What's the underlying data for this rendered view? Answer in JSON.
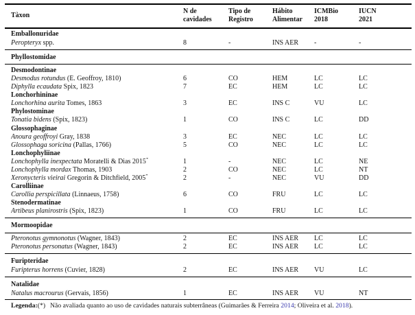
{
  "table": {
    "star_symbol": "*",
    "link_color": "#3a3aad",
    "columns": [
      {
        "id": "taxon",
        "label_line1": "Tàxon",
        "label_line2": ""
      },
      {
        "id": "n_cavidades",
        "label_line1": "N de",
        "label_line2": "cavidades"
      },
      {
        "id": "tipo_registro",
        "label_line1": "Tipo de",
        "label_line2": "Registro"
      },
      {
        "id": "habito_alimentar",
        "label_line1": "Hábito",
        "label_line2": "Alimentar"
      },
      {
        "id": "icmbio_2018",
        "label_line1": "ICMBio",
        "label_line2": "2018"
      },
      {
        "id": "iucn_2021",
        "label_line1": "IUCN",
        "label_line2": "2021"
      }
    ],
    "sections": [
      {
        "family": "Emballonuridae",
        "rule_before": false,
        "rule_after_family": false,
        "rows": [
          {
            "type": "species",
            "italic": "Peropteryx",
            "roman": " spp.",
            "star": false,
            "n": "8",
            "tipo": "-",
            "habito": "INS AER",
            "icmbio": "-",
            "iucn": "-"
          }
        ]
      },
      {
        "family": "Phyllostomidae",
        "rule_before": true,
        "rule_after_family": true,
        "rows": [
          {
            "type": "subfamily",
            "label": "Desmodontinae"
          },
          {
            "type": "species",
            "italic": "Desmodus rotundus",
            "roman": " (É. Geoffroy, 1810)",
            "star": false,
            "n": "6",
            "tipo": "CO",
            "habito": "HEM",
            "icmbio": "LC",
            "iucn": "LC"
          },
          {
            "type": "species",
            "italic": "Diphylla ecaudata",
            "roman": " Spix, 1823",
            "star": false,
            "n": "7",
            "tipo": "EC",
            "habito": "HEM",
            "icmbio": "LC",
            "iucn": "LC"
          },
          {
            "type": "subfamily",
            "label": "Lonchorhininae"
          },
          {
            "type": "species",
            "italic": "Lonchorhina aurita",
            "roman": " Tomes, 1863",
            "star": false,
            "n": "3",
            "tipo": "EC",
            "habito": "INS C",
            "icmbio": "VU",
            "iucn": "LC"
          },
          {
            "type": "subfamily",
            "label": "Phylostominae"
          },
          {
            "type": "species",
            "italic": "Tonatia bidens",
            "roman": " (Spix, 1823)",
            "star": false,
            "n": "1",
            "tipo": "CO",
            "habito": "INS C",
            "icmbio": "LC",
            "iucn": "DD"
          },
          {
            "type": "subfamily",
            "label": "Glossophaginae"
          },
          {
            "type": "species",
            "italic": "Anoura geoffroyi",
            "roman": " Gray, 1838",
            "star": false,
            "n": "3",
            "tipo": "EC",
            "habito": "NEC",
            "icmbio": "LC",
            "iucn": "LC"
          },
          {
            "type": "species",
            "italic": "Glossophaga soricina",
            "roman": " (Pallas, 1766)",
            "star": false,
            "n": "5",
            "tipo": "CO",
            "habito": "NEC",
            "icmbio": "LC",
            "iucn": "LC"
          },
          {
            "type": "subfamily",
            "label": "Lonchophyliinae"
          },
          {
            "type": "species",
            "italic": "Lonchophylla inexpectata",
            "roman": " Moratelli & Dias 2015",
            "star": true,
            "n": "1",
            "tipo": "-",
            "habito": "NEC",
            "icmbio": "LC",
            "iucn": "NE"
          },
          {
            "type": "species",
            "italic": "Lonchophylla mordax",
            "roman": " Thomas, 1903",
            "star": false,
            "n": "2",
            "tipo": "CO",
            "habito": "NEC",
            "icmbio": "LC",
            "iucn": "NT"
          },
          {
            "type": "species",
            "italic": "Xeronycteris vieirai",
            "roman": " Gregorin & Ditchfield, 2005",
            "star": true,
            "n": "2",
            "tipo": "-",
            "habito": "NEC",
            "icmbio": "VU",
            "iucn": "DD"
          },
          {
            "type": "subfamily",
            "label": "Carolliinae"
          },
          {
            "type": "species",
            "italic": "Carollia perspicillata",
            "roman": " (Linnaeus, 1758)",
            "star": false,
            "n": "6",
            "tipo": "CO",
            "habito": "FRU",
            "icmbio": "LC",
            "iucn": "LC"
          },
          {
            "type": "subfamily",
            "label": "Stenodermatinae"
          },
          {
            "type": "species",
            "italic": "Artibeus planirostris",
            "roman": " (Spix, 1823)",
            "star": false,
            "n": "1",
            "tipo": "CO",
            "habito": "FRU",
            "icmbio": "LC",
            "iucn": "LC"
          }
        ]
      },
      {
        "family": "Mormoopidae",
        "rule_before": true,
        "rule_after_family": true,
        "rows": [
          {
            "type": "species",
            "italic": "Pteronotus gymnonotus",
            "roman": " (Wagner, 1843)",
            "star": false,
            "n": "2",
            "tipo": "EC",
            "habito": "INS AER",
            "icmbio": "LC",
            "iucn": "LC"
          },
          {
            "type": "species",
            "italic": "Pteronotus personatus",
            "roman": " (Wagner, 1843)",
            "star": false,
            "n": "2",
            "tipo": "EC",
            "habito": "INS AER",
            "icmbio": "LC",
            "iucn": "LC"
          }
        ]
      },
      {
        "family": "Furipteridae",
        "rule_before": true,
        "rule_after_family": false,
        "rows": [
          {
            "type": "species",
            "italic": "Furipterus horrens",
            "roman": " (Cuvier, 1828)",
            "star": false,
            "n": "2",
            "tipo": "EC",
            "habito": "INS AER",
            "icmbio": "VU",
            "iucn": "LC"
          }
        ]
      },
      {
        "family": "Natalidae",
        "rule_before": true,
        "rule_after_family": false,
        "rows": [
          {
            "type": "species",
            "italic": "Natalus macrourus",
            "roman": " (Gervais, 1856)",
            "star": false,
            "n": "1",
            "tipo": "EC",
            "habito": "INS AER",
            "icmbio": "VU",
            "iucn": "NT"
          }
        ]
      }
    ],
    "legend": {
      "label": "Legenda:",
      "marker": "(*)",
      "text_before": "Não avaliada quanto ao uso de cavidades naturais subterrâneas (Guimarães & Ferreira ",
      "link1": "2014",
      "text_mid": "; Oliveira et al. ",
      "link2": "2018",
      "text_after": ")."
    }
  }
}
